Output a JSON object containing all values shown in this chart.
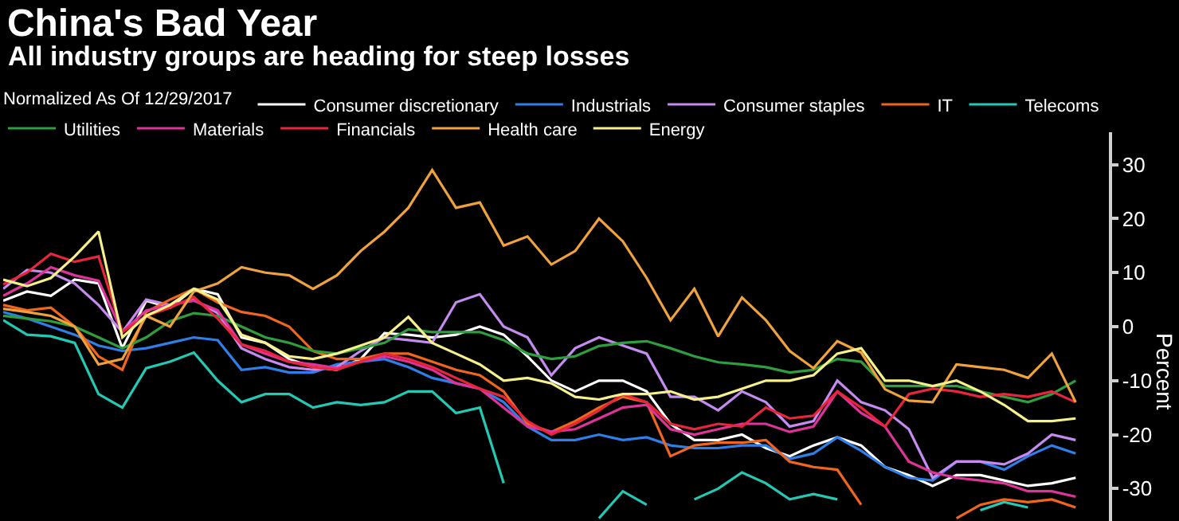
{
  "chart_data": {
    "type": "line",
    "title": "China's Bad Year",
    "subtitle": "All industry groups are heading for steep losses",
    "legend_title": "Normalized As Of 12/29/2017",
    "ylabel": "Percent",
    "categories": [
      null,
      null,
      null,
      null,
      null,
      null,
      null,
      null,
      null,
      null,
      null,
      null,
      null,
      null,
      null,
      null,
      null,
      null,
      null,
      null,
      null,
      null,
      null,
      null,
      null,
      null,
      null,
      null,
      null,
      null,
      null,
      null,
      null,
      null,
      null,
      null,
      null,
      null,
      null,
      null,
      null,
      null,
      null,
      null,
      null,
      null
    ],
    "series": [
      {
        "name": "Consumer discretionary",
        "color": "#ffffff",
        "values": [
          4.8,
          6.5,
          5.7,
          8.7,
          8,
          -4,
          4.8,
          3.5,
          7,
          6,
          -2,
          -3,
          -6,
          -7.5,
          -8,
          -6,
          -1.2,
          -1.5,
          -2,
          -1.5,
          0,
          -1.5,
          -5.5,
          -10,
          -12,
          -10,
          -10,
          -12,
          -18,
          -21,
          -21,
          -20,
          -22.5,
          -24,
          -22,
          -20.5,
          -22,
          -26,
          -27.5,
          -29.5,
          -27.5,
          -27.5,
          -28.5,
          -29.5,
          -29,
          -28
        ]
      },
      {
        "name": "Industrials",
        "color": "#2f7fe8",
        "values": [
          2.7,
          1.5,
          0,
          -1.5,
          -3.5,
          -4.5,
          -4,
          -3,
          -2,
          -2.5,
          -8,
          -7.5,
          -8.5,
          -8.5,
          -7,
          -6.5,
          -6,
          -7.5,
          -9.5,
          -10.5,
          -11.5,
          -14,
          -18.5,
          -21,
          -21,
          -20,
          -21,
          -20.5,
          -22,
          -22.5,
          -22.5,
          -22,
          -22,
          -24.5,
          -23.5,
          -20.5,
          -23,
          -26,
          -28,
          -28.5,
          -25,
          -25,
          -26.5,
          -24,
          -22,
          -23.5
        ]
      },
      {
        "name": "Consumer staples",
        "color": "#c58bf0",
        "values": [
          7,
          10.5,
          10,
          8,
          4,
          -1,
          5,
          4,
          5,
          2.5,
          -4,
          -6,
          -7.5,
          -8,
          -7.5,
          -4.5,
          -2,
          -2.5,
          -3,
          4.5,
          6,
          0,
          -2,
          -9,
          -4,
          -2,
          -3.5,
          -5,
          -13,
          -13,
          -15.5,
          -12,
          -14,
          -18.5,
          -17.5,
          -10,
          -14,
          -15.5,
          -19,
          -28,
          -25,
          -25,
          -25.5,
          -23.5,
          -20,
          -21
        ]
      },
      {
        "name": "IT",
        "color": "#f2651e",
        "values": [
          4,
          3,
          3.5,
          0,
          -5.5,
          -8,
          2.7,
          5,
          7,
          4.5,
          2.7,
          2,
          0,
          -4.5,
          -6,
          -6,
          -5,
          -5,
          -6.5,
          -8,
          -9,
          -12,
          -18,
          -19.5,
          -17.5,
          -15,
          -13,
          -14,
          -24,
          -22,
          -21.5,
          -21.5,
          -21,
          -25,
          -26,
          -26.5,
          -33,
          null,
          null,
          null,
          -35.5,
          -33,
          -32,
          -32.5,
          -32,
          -33.5
        ]
      },
      {
        "name": "Telecoms",
        "color": "#22c9b4",
        "values": [
          1.2,
          -1.5,
          -1.8,
          -3,
          -12.5,
          -15,
          -7.7,
          -6.5,
          -4.8,
          -10,
          -14,
          -12.5,
          -12.5,
          -15,
          -14,
          -14.5,
          -14,
          -12,
          -12,
          -16,
          -15,
          -29,
          null,
          null,
          null,
          -35.5,
          -30.5,
          -33,
          null,
          -32,
          -30,
          -27,
          -29,
          -32,
          -31,
          -32,
          null,
          null,
          null,
          null,
          null,
          -34,
          -32.5,
          -33.5,
          null,
          null
        ]
      },
      {
        "name": "Utilities",
        "color": "#2e9e3e",
        "values": [
          2,
          1.5,
          1,
          0,
          -2,
          -4,
          -2,
          1,
          2.5,
          2,
          0,
          -2,
          -3,
          -4.5,
          -5,
          -4,
          -3,
          -0.5,
          -1,
          -1,
          -1,
          -2.5,
          -5,
          -6,
          -5.5,
          -3.6,
          -3,
          -2.7,
          -4,
          -5.5,
          -6.6,
          -7,
          -7.5,
          -8.5,
          -8,
          -6,
          -6.5,
          -11,
          -11,
          -11,
          -11,
          -12,
          -13,
          -14,
          -12.5,
          -10
        ]
      },
      {
        "name": "Materials",
        "color": "#e0339a",
        "values": [
          5.7,
          8,
          11,
          9.5,
          8.5,
          -1,
          3,
          4,
          4.8,
          3,
          -3.3,
          -5,
          -6.5,
          -7,
          -7.7,
          -6.5,
          -5.5,
          -6.5,
          -8,
          -10.5,
          -11.5,
          -15,
          -18.5,
          -19.5,
          -19,
          -17,
          -15,
          -14.5,
          -19,
          -20,
          -19,
          -18,
          -18,
          -19.5,
          -18.5,
          -12,
          -16,
          -18.5,
          -25,
          -27,
          -28,
          -28.5,
          -29,
          -30.5,
          -30.5,
          -31.5
        ]
      },
      {
        "name": "Financials",
        "color": "#e8253a",
        "values": [
          7.8,
          10,
          13.5,
          12,
          13,
          -1,
          2,
          3.5,
          5.5,
          1.5,
          -3.3,
          -4.5,
          -6.5,
          -7.5,
          -8,
          -6.5,
          -5,
          -6,
          -7.5,
          -9.5,
          -11.5,
          -13,
          -17.5,
          -20,
          -18,
          -15.5,
          -12.5,
          -14,
          -18,
          -19,
          -18,
          -18.5,
          -15,
          -17,
          -16.5,
          -12,
          -15,
          -18.5,
          -12.5,
          -11.5,
          -12,
          -13,
          -12.5,
          -13,
          -12,
          -14
        ]
      },
      {
        "name": "Health care",
        "color": "#f0a33c",
        "values": [
          3.3,
          2.7,
          2,
          0,
          -7,
          -6,
          2,
          0,
          6.5,
          8,
          11,
          10,
          9.5,
          7,
          9.5,
          14,
          17.6,
          22,
          29,
          22,
          23,
          15,
          16.7,
          11.5,
          14,
          20,
          15.8,
          9,
          1.2,
          7,
          -1.8,
          5.4,
          1.2,
          -4.5,
          -7.7,
          -2.7,
          -4.8,
          -11.6,
          -13.7,
          -14,
          -7,
          -7.5,
          -8,
          -9.5,
          -5,
          -14
        ]
      },
      {
        "name": "Energy",
        "color": "#f5f08a",
        "values": [
          8.7,
          7.5,
          9,
          13,
          17.6,
          -2,
          2,
          4,
          7,
          5,
          -1.5,
          -3,
          -5.5,
          -6,
          -5,
          -3.5,
          -2,
          1.8,
          -3,
          -5,
          -7,
          -10,
          -9.5,
          -10.5,
          -13,
          -13.5,
          -12.5,
          -12.5,
          -12,
          -13.5,
          -13,
          -11.5,
          -10,
          -10,
          -9,
          -5,
          -4,
          -10,
          -10,
          -11,
          -10,
          -12,
          -14.5,
          -17.5,
          -17.5,
          -17
        ]
      }
    ],
    "ylim": [
      -36,
      36
    ],
    "yticks": [
      30,
      20,
      10,
      0,
      -10,
      -20,
      -30
    ],
    "tick_labels": "y",
    "legend": "top",
    "marker": "none",
    "line_style": "solid"
  }
}
